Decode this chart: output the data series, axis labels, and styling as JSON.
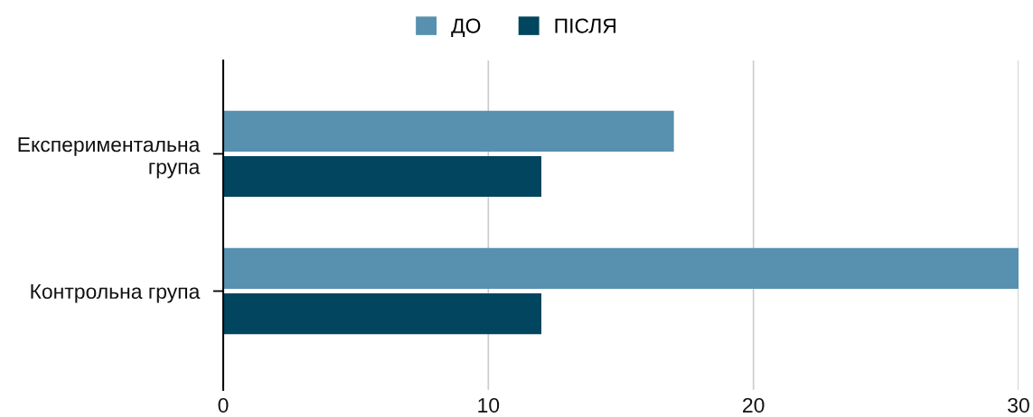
{
  "chart_data": {
    "type": "bar",
    "orientation": "horizontal",
    "categories": [
      "Експериментальна група",
      "Контрольна група"
    ],
    "series": [
      {
        "name": "ДО",
        "color": "#5791af",
        "values": [
          17,
          30
        ]
      },
      {
        "name": "ПІСЛЯ",
        "color": "#01455f",
        "values": [
          12,
          12
        ]
      }
    ],
    "xlim": [
      0,
      30
    ],
    "xticks": [
      0,
      10,
      20,
      30
    ],
    "grid": "x",
    "legend": "top"
  }
}
